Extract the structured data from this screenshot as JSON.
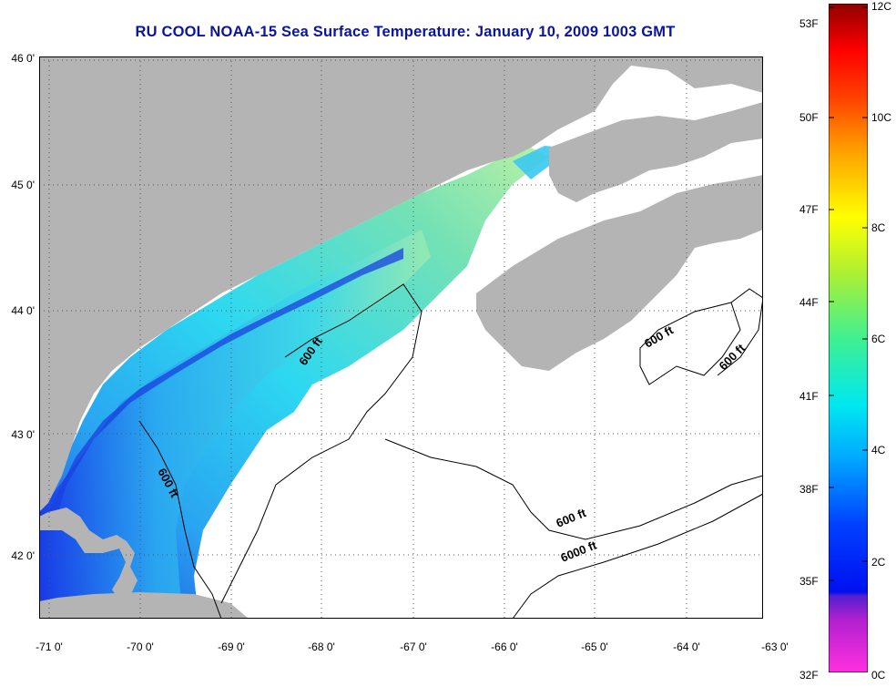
{
  "title": "RU COOL  NOAA-15  Sea Surface Temperature:  January 10, 2009 1003 GMT",
  "lat_labels": [
    "46 0'",
    "45 0'",
    "44 0'",
    "43 0'",
    "42 0'"
  ],
  "lon_labels": [
    "-71 0'",
    "-70 0'",
    "-69 0'",
    "-68 0'",
    "-67 0'",
    "-66 0'",
    "-65 0'",
    "-64 0'",
    "-63 0'"
  ],
  "contour_labels": [
    "600 ft",
    "600 ft",
    "600 ft",
    "600 ft",
    "600 ft",
    "6000 ft"
  ],
  "colorbar": {
    "fahrenheit": [
      "53F",
      "50F",
      "47F",
      "44F",
      "41F",
      "38F",
      "35F",
      "32F"
    ],
    "celsius": [
      "12C",
      "10C",
      "8C",
      "6C",
      "4C",
      "2C",
      "0C"
    ]
  },
  "colors": {
    "land": "#b4b4b4",
    "title": "#0a14a0",
    "water_cloud": "#ffffff"
  }
}
